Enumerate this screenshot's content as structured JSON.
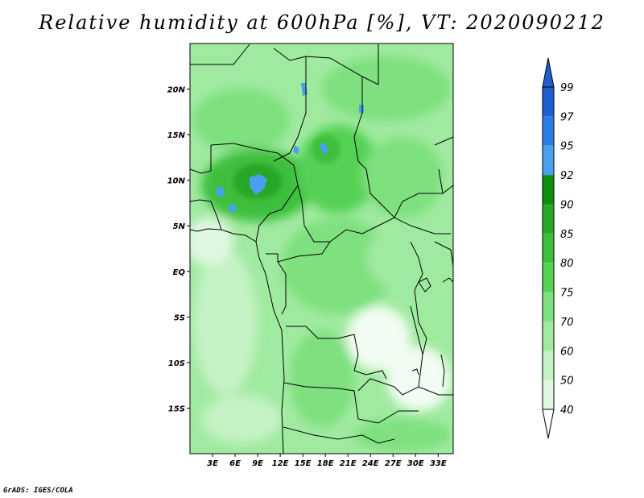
{
  "title": "Relative humidity at 600hPa [%], VT: 2020090212",
  "credit": "GrADS: IGES/COLA",
  "map": {
    "lon_labels": [
      "3E",
      "6E",
      "9E",
      "12E",
      "15E",
      "18E",
      "21E",
      "24E",
      "27E",
      "30E",
      "33E"
    ],
    "lat_labels": [
      "20N",
      "15N",
      "10N",
      "5N",
      "EQ",
      "5S",
      "10S",
      "15S"
    ],
    "lon_range": [
      0,
      35
    ],
    "lat_range": [
      -20,
      25
    ]
  },
  "colorbar": {
    "levels": [
      "99",
      "97",
      "95",
      "92",
      "90",
      "85",
      "80",
      "75",
      "70",
      "60",
      "50",
      "40"
    ],
    "colors": [
      "#1f5fd1",
      "#2a7ce6",
      "#4aa0ee",
      "#0f8f0f",
      "#27a827",
      "#3cbf3c",
      "#55d255",
      "#7ee07e",
      "#a0eaa0",
      "#c4f2c4",
      "#dff8df",
      "#f2fcf2"
    ]
  }
}
